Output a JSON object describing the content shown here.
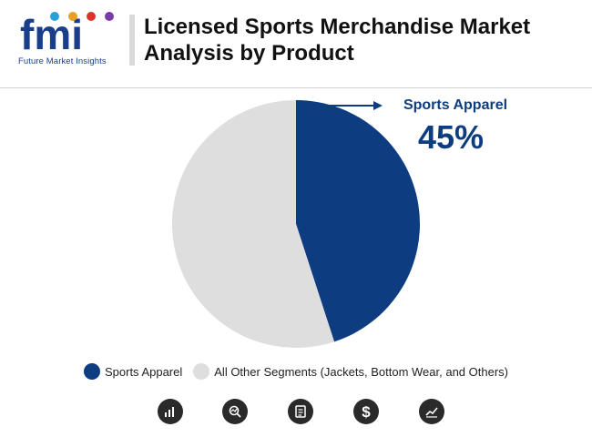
{
  "header": {
    "logo_text": "fmi",
    "logo_subtitle": "Future Market Insights",
    "title": "Licensed Sports Merchandise Market Analysis by Product"
  },
  "colors": {
    "primary": "#0d3d80",
    "other": "#dedede",
    "icon_bg": "#2a2a2a"
  },
  "callout": {
    "label": "Sports Apparel",
    "value": "45%"
  },
  "chart_data": {
    "type": "pie",
    "slices": [
      {
        "label": "Sports Apparel",
        "value": 45,
        "color": "#0d3d80"
      },
      {
        "label": "All Other Segments (Jackets, Bottom Wear, and Others)",
        "value": 55,
        "color": "#dedede"
      }
    ],
    "legend_position": "bottom"
  },
  "legend": {
    "items": [
      {
        "label": "Sports Apparel",
        "color": "#0d3d80"
      },
      {
        "label": "All Other Segments (Jackets, Bottom Wear, and Others)",
        "color": "#dedede"
      }
    ]
  },
  "footer_icons": [
    "bar-chart-icon",
    "magnifier-chart-icon",
    "document-icon",
    "dollar-icon",
    "line-chart-icon"
  ]
}
